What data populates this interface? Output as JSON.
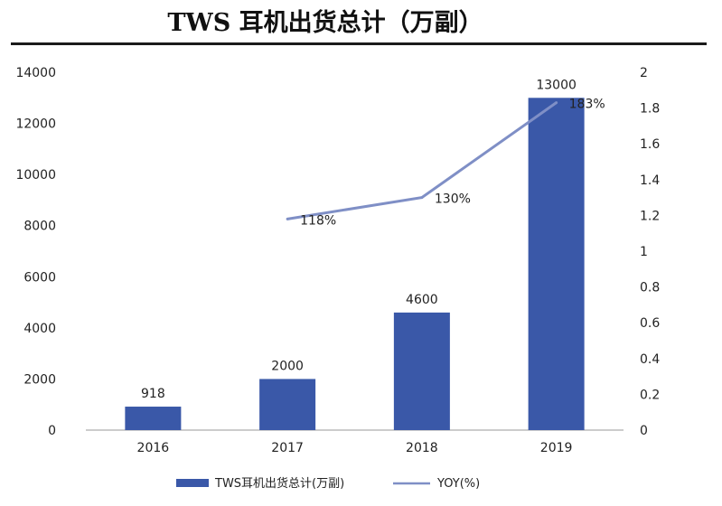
{
  "chart_data": {
    "type": "bar",
    "title": "TWS 耳机出货总计（万副）",
    "categories": [
      "2016",
      "2017",
      "2018",
      "2019"
    ],
    "series": [
      {
        "name": "TWS耳机出货总计(万副)",
        "kind": "bar",
        "axis": "left",
        "color": "#3a58a8",
        "values": [
          918,
          2000,
          4600,
          13000
        ],
        "labels": [
          "918",
          "2000",
          "4600",
          "13000"
        ]
      },
      {
        "name": "YOY(%)",
        "kind": "line",
        "axis": "right",
        "color": "#7f8fc6",
        "values": [
          null,
          1.18,
          1.3,
          1.83
        ],
        "labels": [
          "",
          "118%",
          "130%",
          "183%"
        ]
      }
    ],
    "y_left": {
      "min": 0,
      "max": 14000,
      "ticks": [
        "0",
        "2000",
        "4000",
        "6000",
        "8000",
        "10000",
        "12000",
        "14000"
      ]
    },
    "y_right": {
      "min": 0,
      "max": 2,
      "ticks": [
        "0",
        "0.2",
        "0.4",
        "0.6",
        "0.8",
        "1",
        "1.2",
        "1.4",
        "1.6",
        "1.8",
        "2"
      ]
    },
    "grid": false,
    "legend_position": "bottom"
  }
}
